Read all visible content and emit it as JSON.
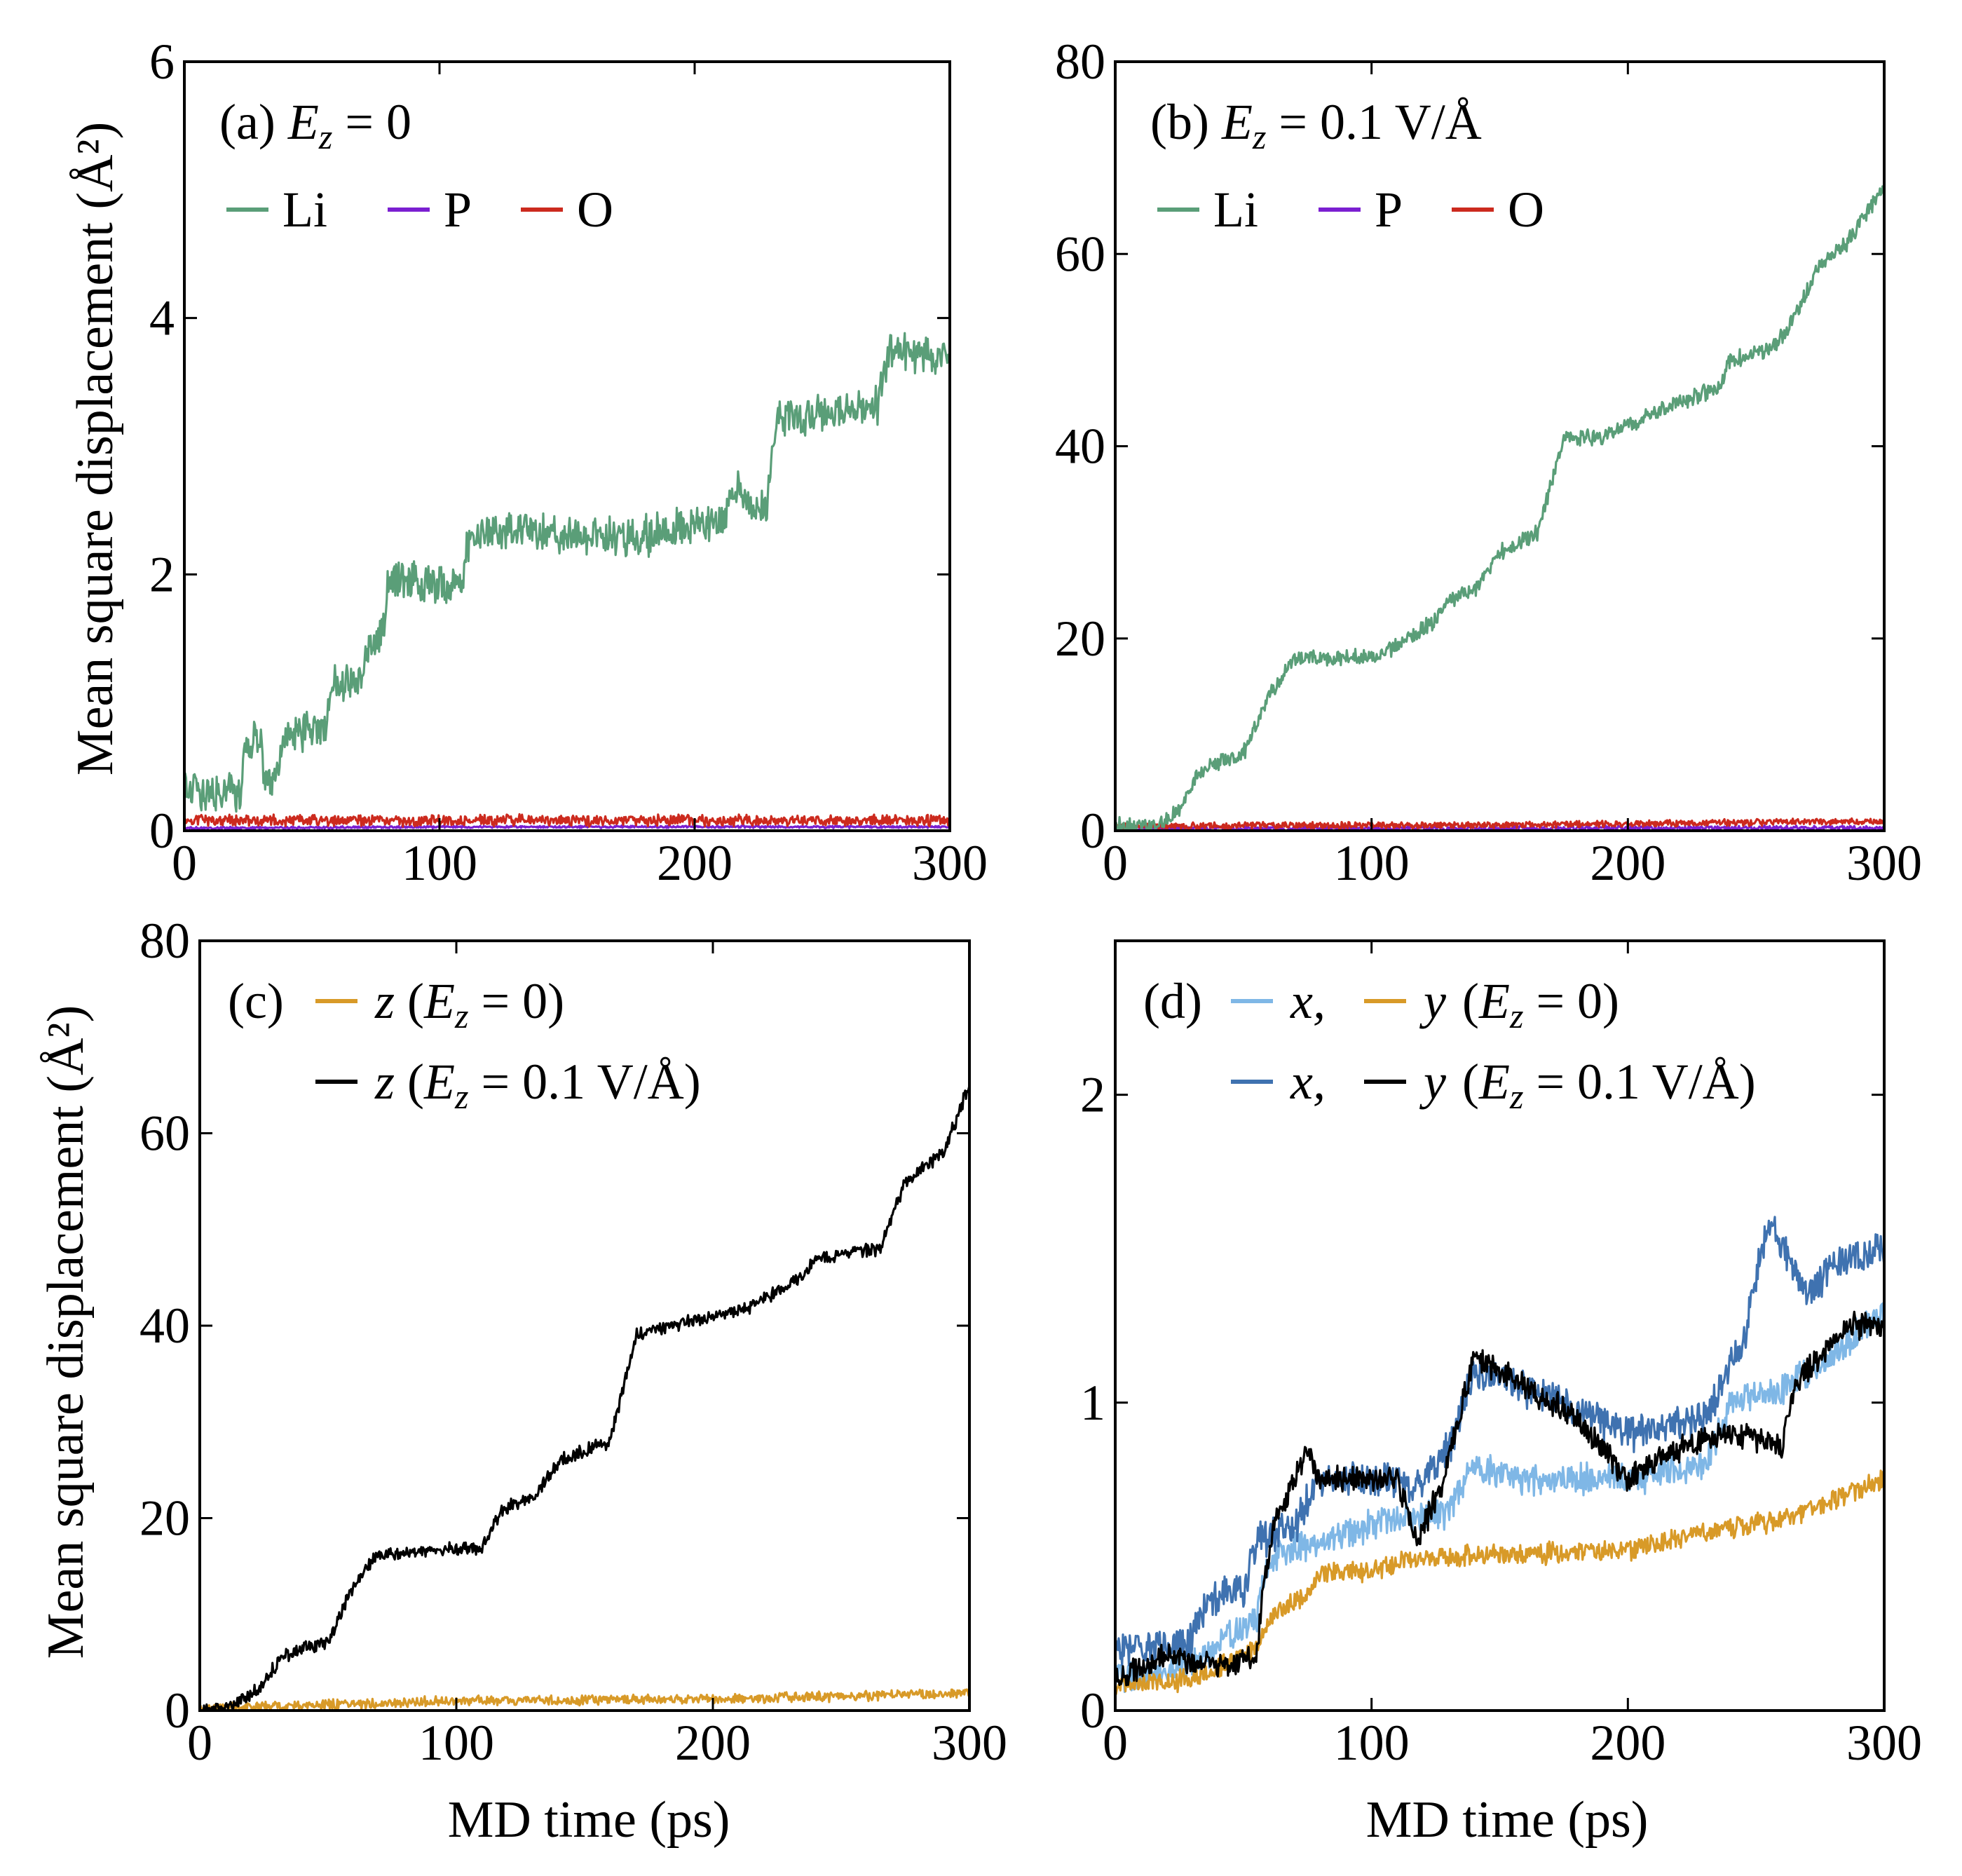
{
  "figure": {
    "shared_y_label": "Mean square displacement (Å²)",
    "shared_x_label": "MD time (ps)"
  },
  "colors": {
    "li_green": "#5a9e78",
    "p_purple": "#7b1fd1",
    "o_red": "#cc2a1e",
    "z0_gold": "#d89a28",
    "black": "#000000",
    "x0_lightblue": "#7fb7e6",
    "x1_blue": "#3f72b0"
  },
  "chart_data": [
    {
      "id": "a",
      "type": "line",
      "panel_label": "(a)",
      "title": "E_z = 0",
      "title_parts": {
        "sym": "E",
        "sub": "z",
        "rest": " = 0"
      },
      "xlim": [
        0,
        300
      ],
      "ylim": [
        0,
        6
      ],
      "xticks": [
        0,
        100,
        200,
        300
      ],
      "yticks": [
        0,
        2,
        4,
        6
      ],
      "ylabel": "Mean square displacement (Å²)",
      "xlabel": "",
      "legend": [
        {
          "label": "Li",
          "color": "#5a9e78"
        },
        {
          "label": "P",
          "color": "#7b1fd1"
        },
        {
          "label": "O",
          "color": "#cc2a1e"
        }
      ],
      "series": [
        {
          "name": "P",
          "color": "#7b1fd1",
          "noise": 0.01,
          "points": [
            [
              0,
              0.02
            ],
            [
              100,
              0.03
            ],
            [
              200,
              0.03
            ],
            [
              300,
              0.03
            ]
          ]
        },
        {
          "name": "O",
          "color": "#cc2a1e",
          "noise": 0.05,
          "points": [
            [
              0,
              0.08
            ],
            [
              100,
              0.08
            ],
            [
              200,
              0.08
            ],
            [
              300,
              0.08
            ]
          ]
        },
        {
          "name": "Li",
          "color": "#5a9e78",
          "noise": 0.18,
          "points": [
            [
              0,
              0.3
            ],
            [
              22,
              0.3
            ],
            [
              24,
              0.7
            ],
            [
              30,
              0.7
            ],
            [
              32,
              0.35
            ],
            [
              36,
              0.4
            ],
            [
              40,
              0.75
            ],
            [
              55,
              0.8
            ],
            [
              58,
              1.15
            ],
            [
              68,
              1.15
            ],
            [
              72,
              1.45
            ],
            [
              78,
              1.55
            ],
            [
              80,
              2.0
            ],
            [
              88,
              1.95
            ],
            [
              108,
              1.9
            ],
            [
              112,
              2.3
            ],
            [
              130,
              2.35
            ],
            [
              160,
              2.3
            ],
            [
              180,
              2.3
            ],
            [
              195,
              2.35
            ],
            [
              210,
              2.4
            ],
            [
              218,
              2.7
            ],
            [
              222,
              2.5
            ],
            [
              228,
              2.5
            ],
            [
              232,
              3.2
            ],
            [
              260,
              3.3
            ],
            [
              272,
              3.3
            ],
            [
              276,
              3.75
            ],
            [
              300,
              3.7
            ]
          ]
        }
      ]
    },
    {
      "id": "b",
      "type": "line",
      "panel_label": "(b)",
      "title": "E_z = 0.1 V/Å",
      "title_parts": {
        "sym": "E",
        "sub": "z",
        "rest": " = 0.1 V/Å"
      },
      "xlim": [
        0,
        300
      ],
      "ylim": [
        0,
        80
      ],
      "xticks": [
        0,
        100,
        200,
        300
      ],
      "yticks": [
        0,
        20,
        40,
        60,
        80
      ],
      "ylabel": "",
      "xlabel": "",
      "legend": [
        {
          "label": "Li",
          "color": "#5a9e78"
        },
        {
          "label": "P",
          "color": "#7b1fd1"
        },
        {
          "label": "O",
          "color": "#cc2a1e"
        }
      ],
      "series": [
        {
          "name": "P",
          "color": "#7b1fd1",
          "noise": 0.3,
          "points": [
            [
              0,
              0.2
            ],
            [
              300,
              0.3
            ]
          ]
        },
        {
          "name": "O",
          "color": "#cc2a1e",
          "noise": 0.4,
          "points": [
            [
              0,
              0.5
            ],
            [
              150,
              0.6
            ],
            [
              300,
              1.0
            ]
          ]
        },
        {
          "name": "Li",
          "color": "#5a9e78",
          "noise": 1.0,
          "points": [
            [
              0,
              0.5
            ],
            [
              15,
              0.5
            ],
            [
              25,
              2
            ],
            [
              32,
              6
            ],
            [
              40,
              7
            ],
            [
              50,
              8
            ],
            [
              60,
              14
            ],
            [
              70,
              18
            ],
            [
              100,
              18
            ],
            [
              115,
              20
            ],
            [
              125,
              22
            ],
            [
              130,
              24
            ],
            [
              140,
              25
            ],
            [
              150,
              29
            ],
            [
              165,
              31
            ],
            [
              175,
              41
            ],
            [
              190,
              41
            ],
            [
              215,
              44
            ],
            [
              235,
              46
            ],
            [
              240,
              49
            ],
            [
              255,
              50
            ],
            [
              262,
              52
            ],
            [
              268,
              55
            ],
            [
              275,
              59
            ],
            [
              285,
              61
            ],
            [
              300,
              67
            ]
          ]
        }
      ]
    },
    {
      "id": "c",
      "type": "line",
      "panel_label": "(c)",
      "xlim": [
        0,
        300
      ],
      "ylim": [
        0,
        80
      ],
      "xticks": [
        0,
        100,
        200,
        300
      ],
      "yticks": [
        0,
        20,
        40,
        60,
        80
      ],
      "ylabel": "Mean square displacement (Å²)",
      "xlabel": "MD time (ps)",
      "legend": [
        {
          "label": "z (E_z = 0)",
          "sym": "z",
          "rest": " = 0)",
          "color": "#d89a28"
        },
        {
          "label": "z (E_z = 0.1 V/Å)",
          "sym": "z",
          "rest": " = 0.1 V/Å)",
          "color": "#000000"
        }
      ],
      "series": [
        {
          "name": "z (E_z = 0)",
          "color": "#d89a28",
          "noise": 0.6,
          "points": [
            [
              0,
              0.2
            ],
            [
              50,
              0.6
            ],
            [
              100,
              1.0
            ],
            [
              200,
              1.2
            ],
            [
              300,
              1.8
            ]
          ]
        },
        {
          "name": "z (E_z = 0.1 V/Å)",
          "color": "#000000",
          "noise": 0.8,
          "points": [
            [
              0,
              0
            ],
            [
              12,
              0.5
            ],
            [
              22,
              2
            ],
            [
              32,
              5.5
            ],
            [
              40,
              6.5
            ],
            [
              50,
              7
            ],
            [
              58,
              12
            ],
            [
              68,
              16
            ],
            [
              110,
              17
            ],
            [
              118,
              21
            ],
            [
              130,
              22
            ],
            [
              140,
              26
            ],
            [
              150,
              27
            ],
            [
              160,
              28
            ],
            [
              170,
              39
            ],
            [
              185,
              40
            ],
            [
              215,
              42
            ],
            [
              235,
              45
            ],
            [
              240,
              47
            ],
            [
              265,
              48
            ],
            [
              275,
              55
            ],
            [
              290,
              58
            ],
            [
              300,
              65
            ]
          ]
        }
      ]
    },
    {
      "id": "d",
      "type": "line",
      "panel_label": "(d)",
      "xlim": [
        0,
        300
      ],
      "ylim": [
        0,
        2.5
      ],
      "xticks": [
        0,
        100,
        200,
        300
      ],
      "yticks": [
        0,
        1,
        2
      ],
      "ylabel": "",
      "xlabel": "MD time (ps)",
      "legend_rows": [
        {
          "items": [
            {
              "label": "x,",
              "color": "#7fb7e6"
            },
            {
              "label": "y",
              "color": "#d89a28"
            }
          ],
          "rest": " = 0)"
        },
        {
          "items": [
            {
              "label": "x,",
              "color": "#3f72b0"
            },
            {
              "label": "y",
              "color": "#000000"
            }
          ],
          "rest": " = 0.1 V/Å)"
        }
      ],
      "series": [
        {
          "name": "x (E_z = 0)",
          "color": "#7fb7e6",
          "noise": 0.06,
          "points": [
            [
              0,
              0.1
            ],
            [
              30,
              0.15
            ],
            [
              55,
              0.3
            ],
            [
              60,
              0.5
            ],
            [
              80,
              0.55
            ],
            [
              100,
              0.6
            ],
            [
              130,
              0.65
            ],
            [
              140,
              0.8
            ],
            [
              160,
              0.75
            ],
            [
              200,
              0.75
            ],
            [
              230,
              0.8
            ],
            [
              240,
              1.0
            ],
            [
              260,
              1.05
            ],
            [
              280,
              1.15
            ],
            [
              300,
              1.3
            ]
          ]
        },
        {
          "name": "x (E_z = 0.1 V/Å)",
          "color": "#3f72b0",
          "noise": 0.07,
          "points": [
            [
              0,
              0.2
            ],
            [
              30,
              0.22
            ],
            [
              35,
              0.35
            ],
            [
              50,
              0.4
            ],
            [
              55,
              0.55
            ],
            [
              70,
              0.6
            ],
            [
              80,
              0.75
            ],
            [
              110,
              0.75
            ],
            [
              115,
              0.7
            ],
            [
              130,
              0.85
            ],
            [
              140,
              1.1
            ],
            [
              160,
              1.05
            ],
            [
              200,
              0.9
            ],
            [
              230,
              0.95
            ],
            [
              245,
              1.2
            ],
            [
              255,
              1.6
            ],
            [
              270,
              1.35
            ],
            [
              280,
              1.45
            ],
            [
              300,
              1.5
            ]
          ]
        },
        {
          "name": "y (E_z = 0)",
          "color": "#d89a28",
          "noise": 0.04,
          "points": [
            [
              0,
              0.08
            ],
            [
              30,
              0.1
            ],
            [
              55,
              0.2
            ],
            [
              60,
              0.3
            ],
            [
              75,
              0.38
            ],
            [
              80,
              0.45
            ],
            [
              100,
              0.45
            ],
            [
              115,
              0.5
            ],
            [
              130,
              0.5
            ],
            [
              200,
              0.52
            ],
            [
              230,
              0.58
            ],
            [
              260,
              0.62
            ],
            [
              300,
              0.75
            ]
          ]
        },
        {
          "name": "y (E_z = 0.1 V/Å)",
          "color": "#000000",
          "noise": 0.05,
          "points": [
            [
              0,
              0.1
            ],
            [
              20,
              0.18
            ],
            [
              30,
              0.15
            ],
            [
              45,
              0.15
            ],
            [
              55,
              0.18
            ],
            [
              58,
              0.4
            ],
            [
              62,
              0.6
            ],
            [
              70,
              0.75
            ],
            [
              75,
              0.85
            ],
            [
              80,
              0.75
            ],
            [
              110,
              0.75
            ],
            [
              118,
              0.55
            ],
            [
              128,
              0.75
            ],
            [
              140,
              1.15
            ],
            [
              160,
              1.05
            ],
            [
              180,
              0.95
            ],
            [
              190,
              0.85
            ],
            [
              200,
              0.75
            ],
            [
              220,
              0.85
            ],
            [
              240,
              0.9
            ],
            [
              260,
              0.85
            ],
            [
              265,
              1.05
            ],
            [
              285,
              1.25
            ],
            [
              300,
              1.25
            ]
          ]
        }
      ]
    }
  ]
}
